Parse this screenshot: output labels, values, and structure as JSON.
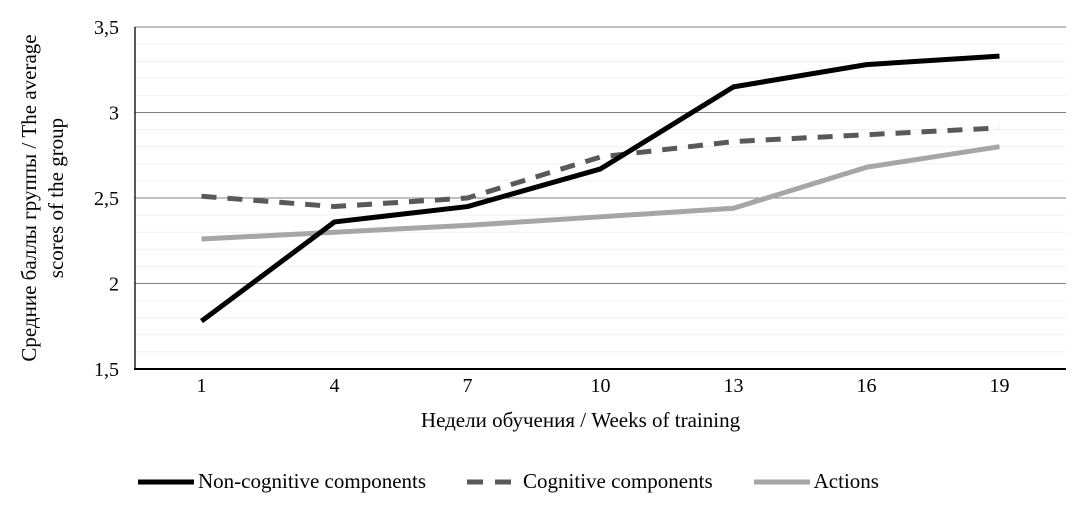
{
  "chart_data": {
    "type": "line",
    "x_categories": [
      "1",
      "4",
      "7",
      "10",
      "13",
      "16",
      "19"
    ],
    "xlabel": "Недели обучения / Weeks of training",
    "ylabel": "Средние баллы группы / The average scores of the group",
    "ylabel_line1": "Средние баллы группы / The average",
    "ylabel_line2": "scores of the group",
    "ylim": [
      1.5,
      3.5
    ],
    "y_ticks": [
      {
        "label": "1,5",
        "value": 1.5
      },
      {
        "label": "2",
        "value": 2.0
      },
      {
        "label": "2,5",
        "value": 2.5
      },
      {
        "label": "3",
        "value": 3.0
      },
      {
        "label": "3,5",
        "value": 3.5
      }
    ],
    "minor_grid_step": 0.1,
    "major_grid_step": 0.5,
    "grid": "on",
    "legend_position": "bottom",
    "series": [
      {
        "name": "Non-cognitive components",
        "color": "#000000",
        "style": "solid",
        "values": [
          1.78,
          2.36,
          2.45,
          2.67,
          3.15,
          3.28,
          3.33
        ]
      },
      {
        "name": "Cognitive components",
        "color": "#595959",
        "style": "dashed",
        "values": [
          2.51,
          2.45,
          2.5,
          2.74,
          2.83,
          2.87,
          2.91
        ]
      },
      {
        "name": "Actions",
        "color": "#a6a6a6",
        "style": "solid",
        "values": [
          2.26,
          2.3,
          2.34,
          2.39,
          2.44,
          2.68,
          2.8
        ]
      }
    ]
  },
  "colors": {
    "major_grid": "#808080",
    "minor_grid": "#f0f0f0",
    "axis": "#000000",
    "background": "#ffffff"
  }
}
